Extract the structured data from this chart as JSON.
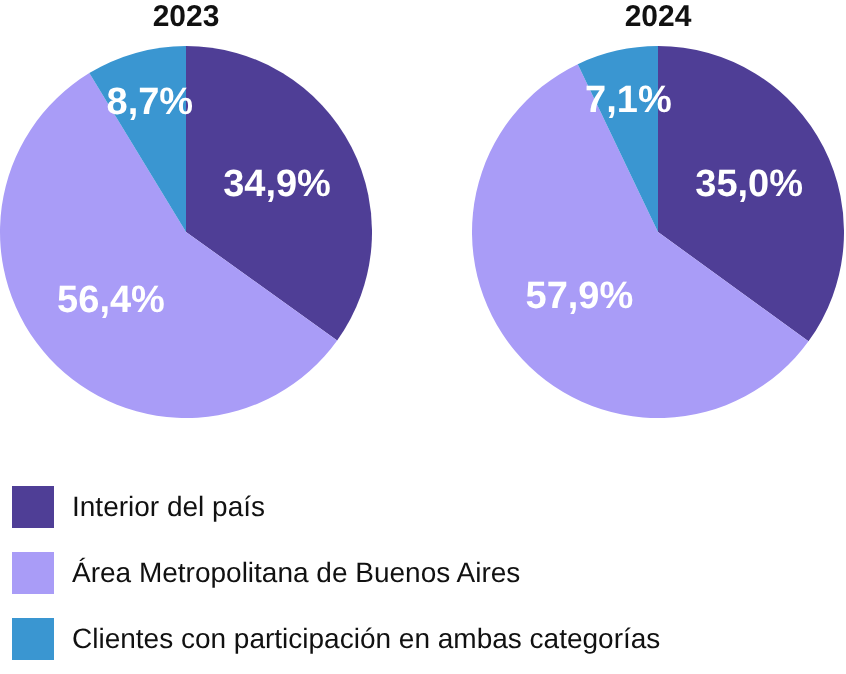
{
  "chart_data": [
    {
      "type": "pie",
      "title": "2023",
      "categories": [
        "Interior del país",
        "Área Metropolitana de Buenos Aires",
        "Clientes con participación en ambas categorías"
      ],
      "values": [
        34.9,
        56.4,
        8.7
      ],
      "value_labels": [
        "34,9%",
        "56,4%",
        "8,7%"
      ],
      "colors": [
        "#4f3e96",
        "#a99cf7",
        "#3a96d1"
      ],
      "legend": "bottom"
    },
    {
      "type": "pie",
      "title": "2024",
      "categories": [
        null,
        null,
        null
      ],
      "values": [
        35.0,
        57.9,
        7.1
      ],
      "value_labels": [
        "35,0%",
        "57,9%",
        "7,1%"
      ],
      "colors": [
        "#4f3e96",
        "#a99cf7",
        "#3a96d1"
      ]
    }
  ]
}
